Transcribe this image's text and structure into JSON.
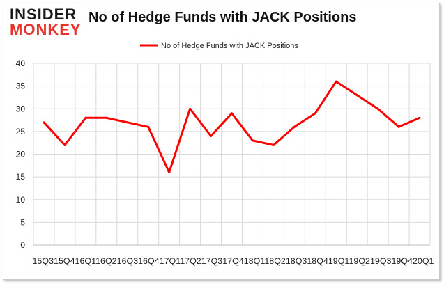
{
  "branding": {
    "logo_line1": "INSIDER",
    "logo_line2": "MONKEY"
  },
  "title": "No of Hedge Funds with JACK Positions",
  "colors": {
    "series": "#ff0000",
    "grid": "#d9d9d9",
    "axis": "#bfbfbf",
    "logo_accent": "#e8322b"
  },
  "chart_data": {
    "type": "line",
    "title": "No of Hedge Funds with JACK Positions",
    "xlabel": "",
    "ylabel": "",
    "ylim": [
      0,
      40
    ],
    "yticks": [
      0,
      5,
      10,
      15,
      20,
      25,
      30,
      35,
      40
    ],
    "grid": true,
    "legend_position": "top-center",
    "categories": [
      "Q3",
      "Q4",
      "Q1",
      "Q2",
      "Q3",
      "Q4",
      "Q1",
      "Q2",
      "Q3",
      "Q4",
      "Q1",
      "Q2",
      "Q3",
      "Q4",
      "Q1",
      "Q2",
      "Q3",
      "Q4",
      "Q1"
    ],
    "x_axis_text": "15Q315Q416Q116Q216Q316Q417Q117Q217Q317Q418Q118Q218Q318Q419Q119Q219Q319Q420Q1",
    "series": [
      {
        "name": "No of Hedge Funds with JACK Positions",
        "values": [
          27,
          22,
          28,
          28,
          27,
          26,
          16,
          30,
          24,
          29,
          23,
          22,
          26,
          29,
          36,
          33,
          30,
          26,
          28
        ]
      }
    ]
  }
}
